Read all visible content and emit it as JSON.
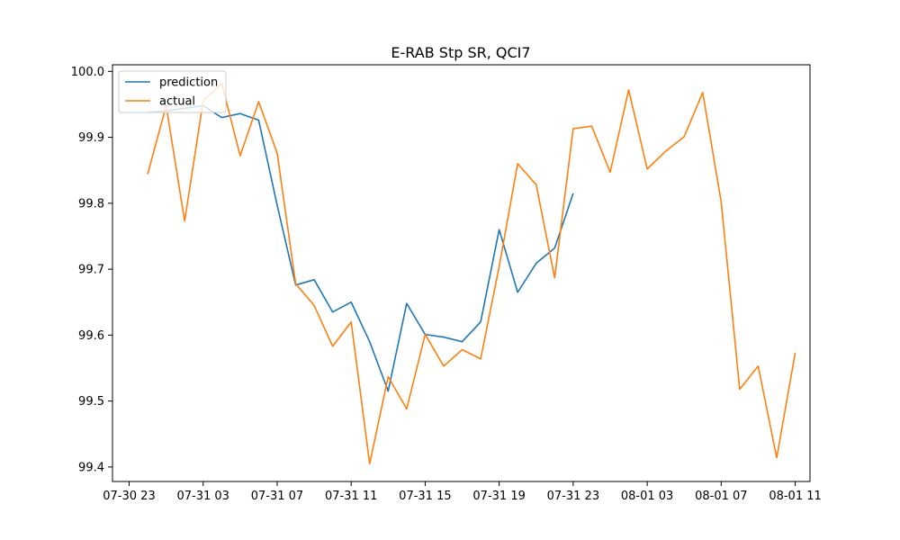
{
  "chart_data": {
    "type": "line",
    "title": "E-RAB Stp SR, QCI7",
    "xlabel": "",
    "ylabel": "",
    "x_ticks": [
      "07-30 23",
      "07-31 03",
      "07-31 07",
      "07-31 11",
      "07-31 15",
      "07-31 19",
      "07-31 23",
      "08-01 03",
      "08-01 07",
      "08-01 11"
    ],
    "y_ticks": [
      "99.4",
      "99.5",
      "99.6",
      "99.7",
      "99.8",
      "99.9",
      "100.0"
    ],
    "ylim": [
      99.378,
      100.01
    ],
    "xlim": [
      "07-30 22:06",
      "08-01 11:48"
    ],
    "grid": false,
    "legend_position": "upper-left",
    "colors": {
      "prediction": "#1f77b4",
      "actual": "#ff7f0e"
    },
    "series": [
      {
        "name": "prediction",
        "x": [
          "07-31 00",
          "07-31 01",
          "07-31 02",
          "07-31 03",
          "07-31 04",
          "07-31 05",
          "07-31 06",
          "07-31 07",
          "07-31 08",
          "07-31 09",
          "07-31 10",
          "07-31 11",
          "07-31 12",
          "07-31 13",
          "07-31 14",
          "07-31 15",
          "07-31 16",
          "07-31 17",
          "07-31 18",
          "07-31 19",
          "07-31 20",
          "07-31 21",
          "07-31 22",
          "07-31 23"
        ],
        "values": [
          99.938,
          99.94,
          99.944,
          99.948,
          99.93,
          99.936,
          99.926,
          99.797,
          99.676,
          99.684,
          99.635,
          99.65,
          99.59,
          99.515,
          99.648,
          99.601,
          99.597,
          99.59,
          99.62,
          99.76,
          99.665,
          99.709,
          99.732,
          99.815
        ]
      },
      {
        "name": "actual",
        "x": [
          "07-31 00",
          "07-31 01",
          "07-31 02",
          "07-31 03",
          "07-31 04",
          "07-31 05",
          "07-31 06",
          "07-31 07",
          "07-31 08",
          "07-31 09",
          "07-31 10",
          "07-31 11",
          "07-31 12",
          "07-31 13",
          "07-31 14",
          "07-31 15",
          "07-31 16",
          "07-31 17",
          "07-31 18",
          "07-31 19",
          "07-31 20",
          "07-31 21",
          "07-31 22",
          "07-31 23",
          "08-01 00",
          "08-01 01",
          "08-01 02",
          "08-01 03",
          "08-01 04",
          "08-01 05",
          "08-01 06",
          "08-01 07",
          "08-01 08",
          "08-01 09",
          "08-01 10",
          "08-01 11"
        ],
        "values": [
          99.844,
          99.948,
          99.773,
          99.955,
          99.982,
          99.872,
          99.954,
          99.876,
          99.678,
          99.645,
          99.583,
          99.62,
          99.405,
          99.537,
          99.488,
          99.601,
          99.553,
          99.578,
          99.564,
          99.704,
          99.86,
          99.828,
          99.687,
          99.913,
          99.917,
          99.847,
          99.972,
          99.852,
          99.879,
          99.901,
          99.968,
          99.802,
          99.518,
          99.553,
          99.414,
          99.573
        ]
      }
    ]
  }
}
